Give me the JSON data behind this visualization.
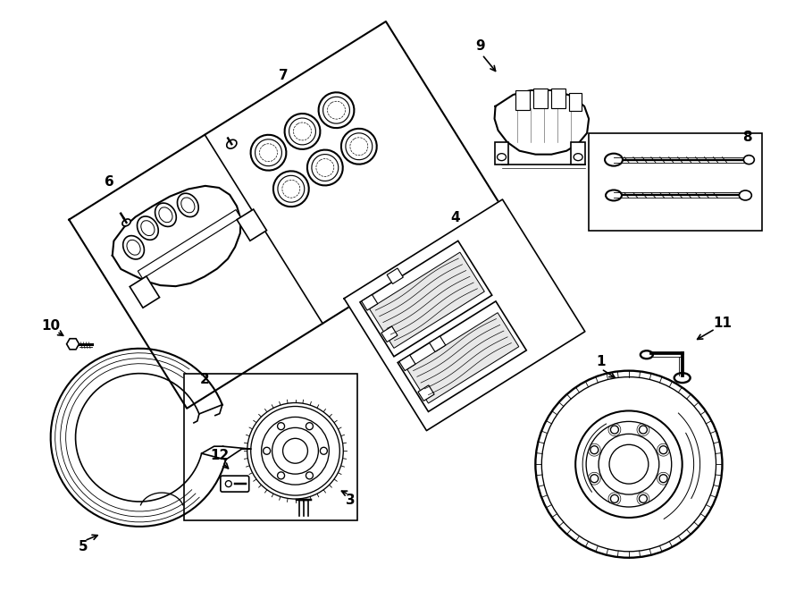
{
  "bg_color": "#ffffff",
  "line_color": "#000000",
  "line_width": 1.2,
  "fig_width": 9.0,
  "fig_height": 6.61
}
